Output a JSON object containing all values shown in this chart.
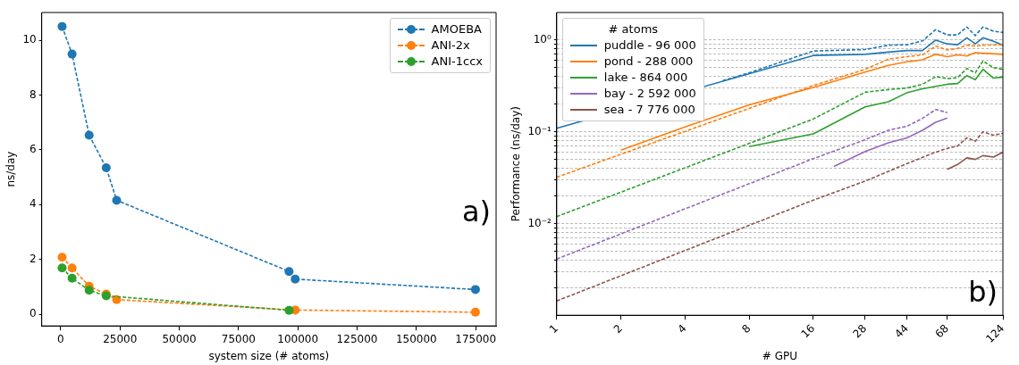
{
  "chart_data": [
    {
      "type": "line",
      "xlabel": "system size (# atoms)",
      "ylabel": "ns/day",
      "xlim": [
        -8000,
        183600
      ],
      "ylim": [
        -0.43,
        11.02
      ],
      "xticks": [
        0,
        25000,
        50000,
        75000,
        100000,
        125000,
        150000,
        175000
      ],
      "yticks": [
        0,
        2,
        4,
        6,
        8,
        10
      ],
      "legend": "top right",
      "marker": "circle",
      "line_style": "dashed",
      "grid": false,
      "annotations": [
        "a)"
      ],
      "series": [
        {
          "name": "AMOEBA",
          "color": "#1f77b4",
          "x": [
            600,
            4800,
            12000,
            19200,
            23600,
            96300,
            98900,
            174900
          ],
          "values": [
            10.51,
            9.5,
            6.54,
            5.35,
            4.16,
            1.56,
            1.28,
            0.9
          ]
        },
        {
          "name": "ANI-2x",
          "color": "#ff7f0e",
          "x": [
            600,
            4800,
            12000,
            19200,
            23600,
            98900,
            174900
          ],
          "values": [
            2.08,
            1.69,
            1.02,
            0.73,
            0.53,
            0.15,
            0.07
          ]
        },
        {
          "name": "ANI-1ccx",
          "color": "#2ca02c",
          "x": [
            600,
            4800,
            12000,
            19200,
            96300
          ],
          "values": [
            1.69,
            1.31,
            0.87,
            0.67,
            0.14
          ]
        }
      ]
    },
    {
      "type": "line",
      "xlabel": "# GPU",
      "ylabel": "Performance (ns/day)",
      "log": "xy",
      "xlim": [
        1,
        124
      ],
      "ylim": [
        0.001,
        2
      ],
      "xticks": [
        1,
        2,
        4,
        8,
        16,
        28,
        44,
        68,
        124
      ],
      "yticks": [
        {
          "value": 0.002,
          "label": null
        },
        {
          "value": 0.003,
          "label": null
        },
        {
          "value": 0.004,
          "label": null
        },
        {
          "value": 0.005,
          "label": null
        },
        {
          "value": 0.006,
          "label": null
        },
        {
          "value": 0.007,
          "label": null
        },
        {
          "value": 0.008,
          "label": null
        },
        {
          "value": 0.009,
          "label": null
        },
        {
          "value": 0.01,
          "label": "10⁻²"
        },
        {
          "value": 0.02,
          "label": null
        },
        {
          "value": 0.03,
          "label": null
        },
        {
          "value": 0.04,
          "label": null
        },
        {
          "value": 0.05,
          "label": null
        },
        {
          "value": 0.06,
          "label": null
        },
        {
          "value": 0.07,
          "label": null
        },
        {
          "value": 0.08,
          "label": null
        },
        {
          "value": 0.09,
          "label": null
        },
        {
          "value": 0.1,
          "label": "10⁻¹"
        },
        {
          "value": 0.2,
          "label": null
        },
        {
          "value": 0.3,
          "label": null
        },
        {
          "value": 0.4,
          "label": null
        },
        {
          "value": 0.5,
          "label": null
        },
        {
          "value": 0.6,
          "label": null
        },
        {
          "value": 0.7,
          "label": null
        },
        {
          "value": 0.8,
          "label": null
        },
        {
          "value": 0.9,
          "label": null
        },
        {
          "value": 1,
          "label": "10⁰"
        }
      ],
      "grid": "y",
      "legend": "top left",
      "legend_title": "# atoms",
      "annotations": [
        "b)"
      ],
      "series": [
        {
          "name": "puddle - 96 000",
          "color": "#1f77b4",
          "line_style": "solid",
          "x": [
            1,
            16,
            28,
            36,
            44,
            52,
            60,
            68,
            76,
            84,
            92,
            100,
            112,
            124
          ],
          "values": [
            0.109,
            0.68,
            0.7,
            0.74,
            0.77,
            0.77,
            1.0,
            0.91,
            0.89,
            1.06,
            0.91,
            1.06,
            0.97,
            0.88
          ]
        },
        {
          "name": "pond - 288 000",
          "color": "#ff7f0e",
          "line_style": "solid",
          "x": [
            2,
            4,
            8,
            16,
            28,
            36,
            44,
            52,
            60,
            68,
            76,
            84,
            92,
            100,
            124
          ],
          "values": [
            0.063,
            0.113,
            0.197,
            0.305,
            0.448,
            0.53,
            0.58,
            0.61,
            0.7,
            0.66,
            0.69,
            0.67,
            0.73,
            0.72,
            0.7
          ]
        },
        {
          "name": "lake - 864 000",
          "color": "#2ca02c",
          "line_style": "solid",
          "x": [
            8,
            16,
            28,
            36,
            44,
            52,
            60,
            68,
            76,
            84,
            92,
            100,
            112,
            124
          ],
          "values": [
            0.069,
            0.095,
            0.187,
            0.213,
            0.267,
            0.294,
            0.313,
            0.33,
            0.336,
            0.41,
            0.37,
            0.48,
            0.385,
            0.395
          ]
        },
        {
          "name": "bay - 2 592 000",
          "color": "#9467bd",
          "line_style": "solid",
          "x": [
            20,
            28,
            36,
            44,
            52,
            60,
            68
          ],
          "values": [
            0.042,
            0.061,
            0.076,
            0.086,
            0.104,
            0.127,
            0.141
          ]
        },
        {
          "name": "sea - 7 776 000",
          "color": "#8c564b",
          "line_style": "solid",
          "x": [
            68,
            76,
            84,
            92,
            100,
            112,
            124
          ],
          "values": [
            0.039,
            0.044,
            0.052,
            0.05,
            0.055,
            0.053,
            0.06
          ]
        },
        {
          "color": "#1f77b4",
          "line_style": "dashed",
          "x": [
            6,
            8,
            16,
            28,
            36,
            44,
            52,
            60,
            68,
            76,
            84,
            92,
            100,
            112,
            124
          ],
          "values": [
            0.36,
            0.44,
            0.76,
            0.79,
            0.88,
            0.89,
            0.98,
            1.3,
            1.14,
            1.14,
            1.39,
            1.12,
            1.39,
            1.25,
            1.21
          ]
        },
        {
          "color": "#ff7f0e",
          "line_style": "dashed",
          "x": [
            1,
            16,
            28,
            36,
            44,
            52,
            60,
            68,
            76,
            84,
            92,
            100,
            124
          ],
          "values": [
            0.032,
            0.32,
            0.48,
            0.62,
            0.66,
            0.69,
            0.86,
            0.78,
            0.81,
            0.88,
            0.86,
            0.88,
            0.89
          ]
        },
        {
          "color": "#2ca02c",
          "line_style": "dashed",
          "x": [
            1,
            16,
            28,
            36,
            44,
            52,
            60,
            68,
            76,
            84,
            92,
            100,
            112,
            124
          ],
          "values": [
            0.0119,
            0.138,
            0.27,
            0.289,
            0.3,
            0.33,
            0.4,
            0.38,
            0.39,
            0.49,
            0.44,
            0.59,
            0.5,
            0.48
          ]
        },
        {
          "color": "#9467bd",
          "line_style": "dashed",
          "x": [
            1,
            16,
            28,
            36,
            44,
            52,
            60,
            68
          ],
          "values": [
            0.0041,
            0.051,
            0.082,
            0.104,
            0.115,
            0.14,
            0.175,
            0.162
          ]
        },
        {
          "color": "#8c564b",
          "line_style": "dashed",
          "x": [
            1,
            16,
            28,
            44,
            60,
            68,
            76,
            84,
            92,
            100,
            112,
            124
          ],
          "values": [
            0.00143,
            0.018,
            0.029,
            0.045,
            0.06,
            0.066,
            0.07,
            0.086,
            0.079,
            0.1,
            0.092,
            0.096
          ]
        }
      ]
    }
  ]
}
